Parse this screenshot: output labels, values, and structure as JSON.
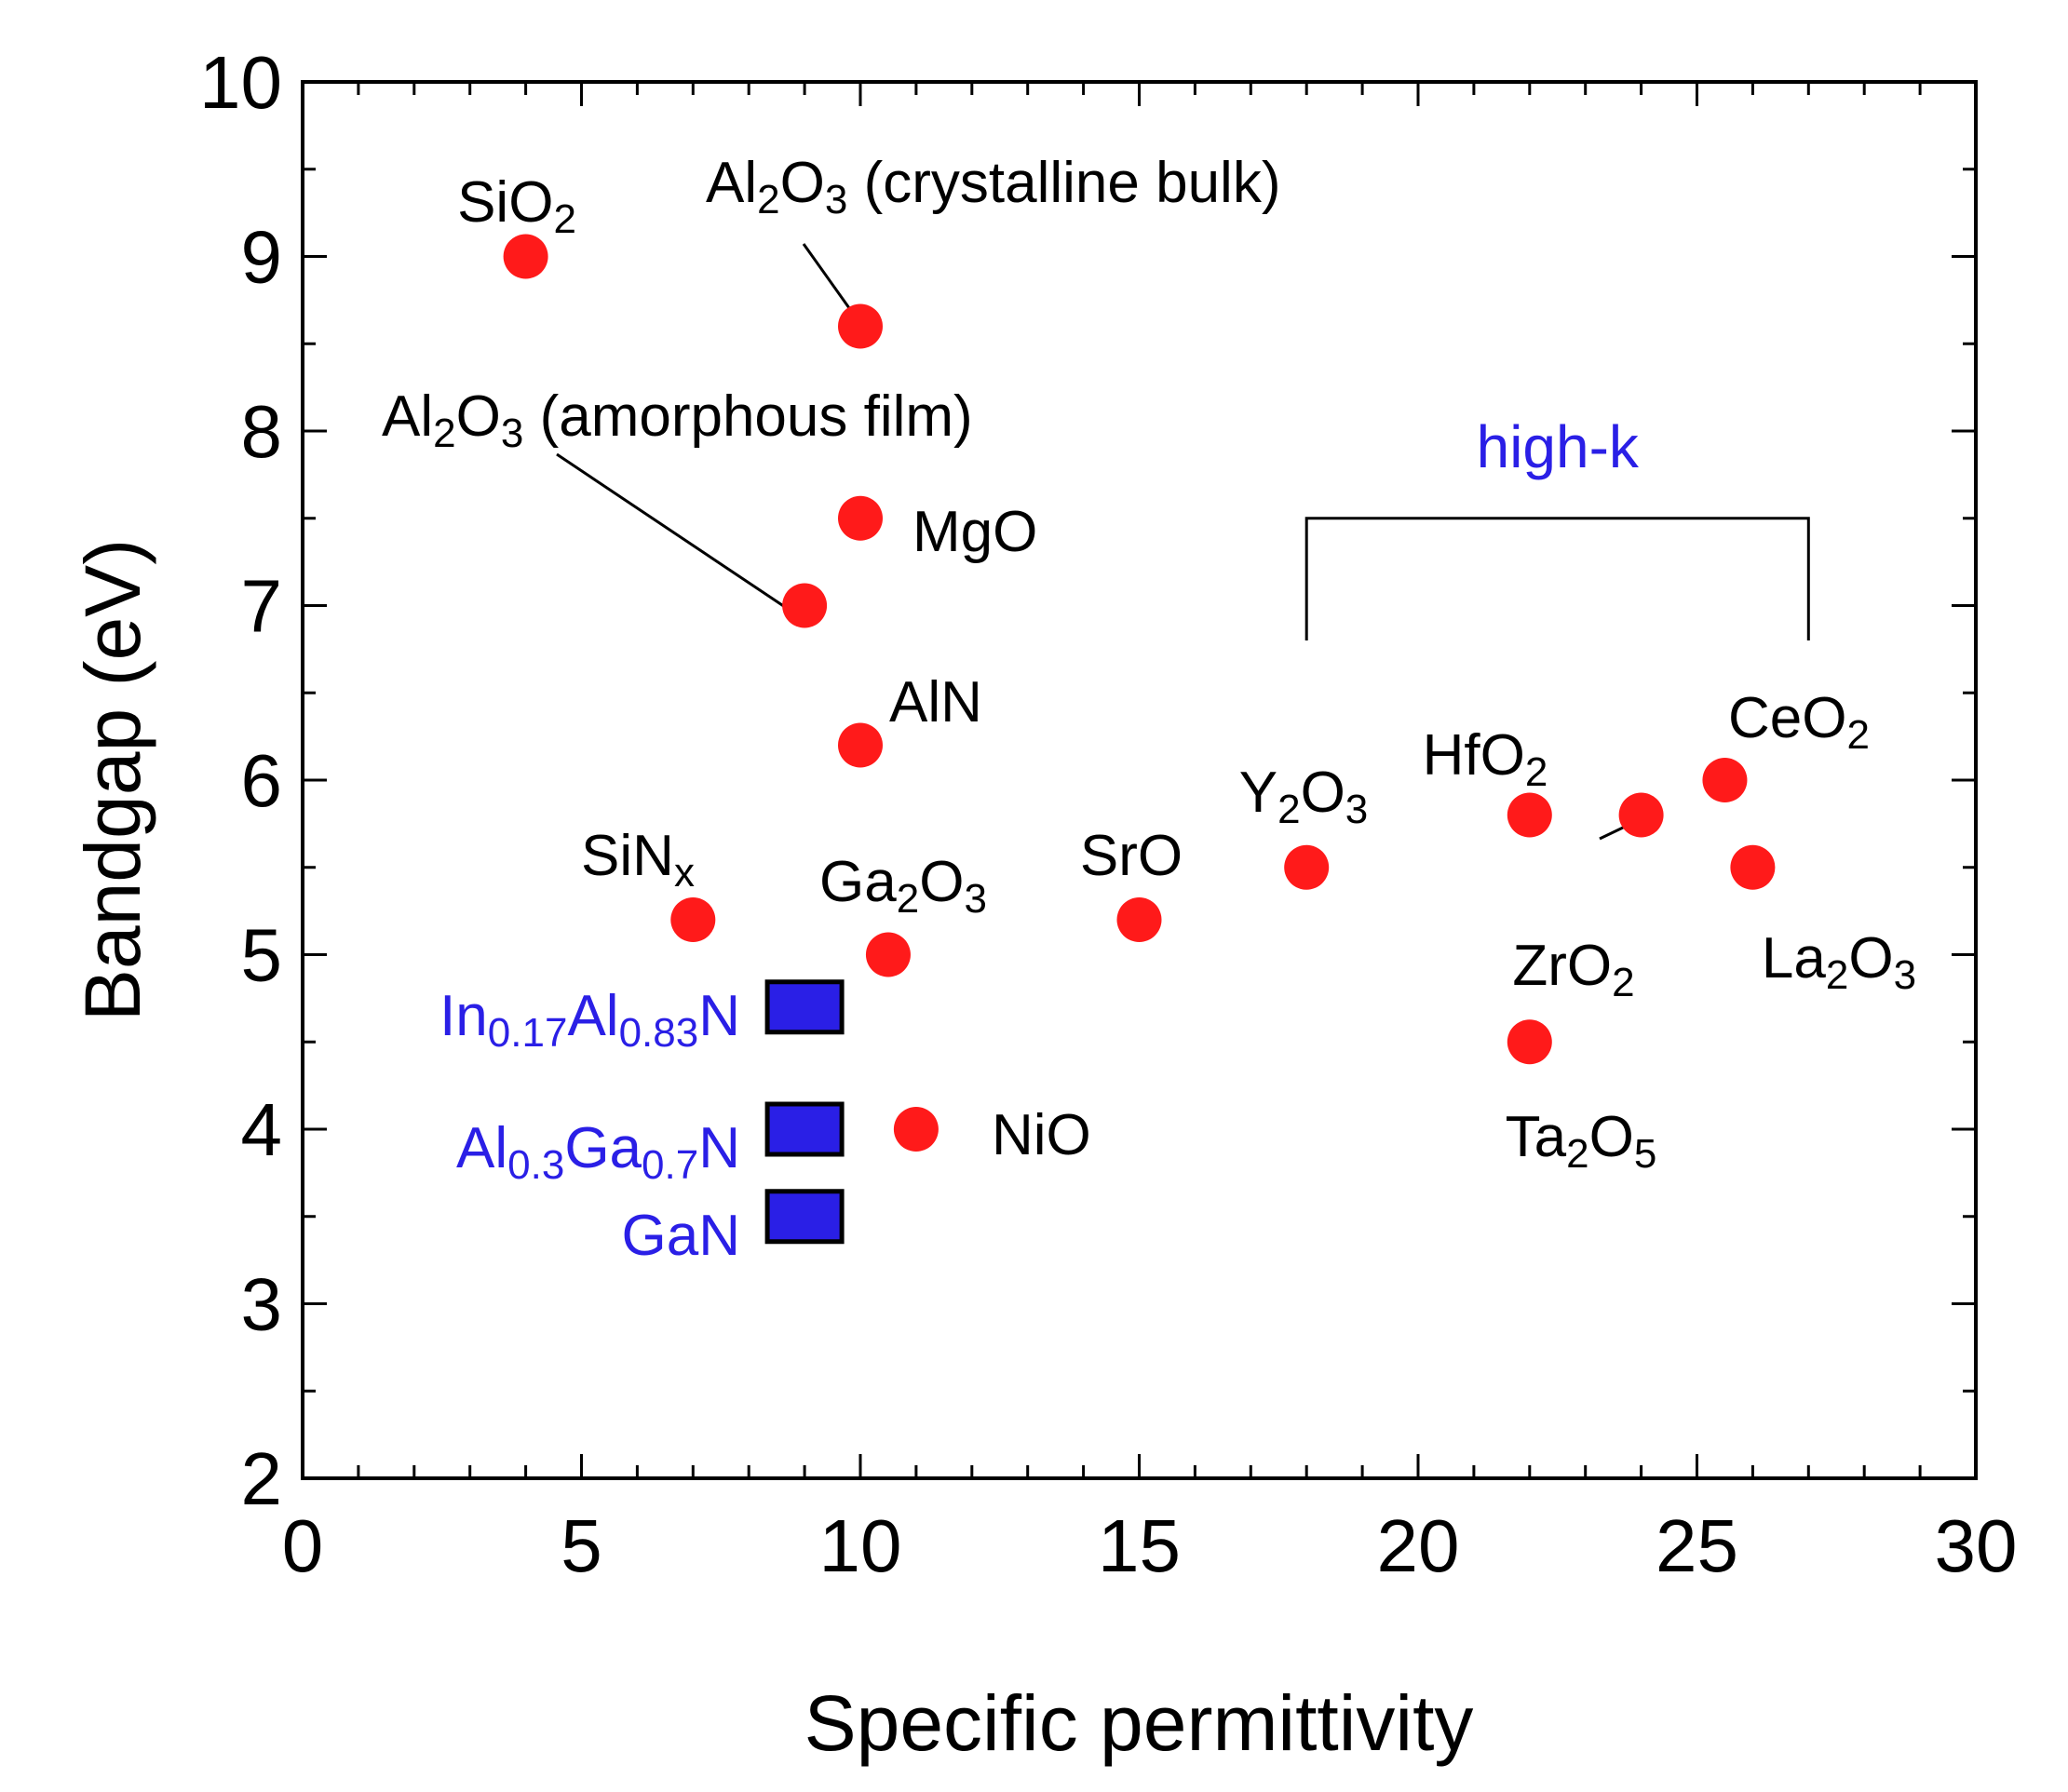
{
  "chart_data": {
    "type": "scatter",
    "xlabel": "Specific permittivity",
    "ylabel": "Bandgap (eV)",
    "xlim": [
      0,
      30
    ],
    "ylim": [
      2,
      10
    ],
    "x_ticks": [
      "0",
      "5",
      "10",
      "15",
      "20",
      "25",
      "30"
    ],
    "y_ticks": [
      "2",
      "3",
      "4",
      "5",
      "6",
      "7",
      "8",
      "9",
      "10"
    ],
    "grid": false,
    "colors": {
      "dielectric": "#ff1a1a",
      "semiconductor": "#2a1fe6",
      "semiconductor_label": "#2a1fe6"
    },
    "series": [
      {
        "name": "dielectrics",
        "marker": "circle",
        "points": [
          {
            "x": 4,
            "y": 9.0,
            "label": "SiO2",
            "base": "SiO",
            "sub": "2"
          },
          {
            "x": 10,
            "y": 8.6,
            "label": "Al2O3 (crystalline bulk)",
            "parts": [
              "Al",
              "2",
              "O",
              "3",
              " (crystalline bulk)"
            ]
          },
          {
            "x": 9,
            "y": 7.0,
            "label": "Al2O3 (amorphous film)",
            "parts": [
              "Al",
              "2",
              "O",
              "3",
              " (amorphous film)"
            ]
          },
          {
            "x": 10,
            "y": 7.5,
            "label": "MgO"
          },
          {
            "x": 10,
            "y": 6.2,
            "label": "AlN"
          },
          {
            "x": 7,
            "y": 5.2,
            "label": "SiNx",
            "parts": [
              "SiN",
              "x"
            ]
          },
          {
            "x": 10.5,
            "y": 5.0,
            "label": "Ga2O3",
            "parts": [
              "Ga",
              "2",
              "O",
              "3"
            ]
          },
          {
            "x": 11,
            "y": 4.0,
            "label": "NiO"
          },
          {
            "x": 15,
            "y": 5.2,
            "label": "SrO"
          },
          {
            "x": 18,
            "y": 5.5,
            "label": "Y2O3",
            "parts": [
              "Y",
              "2",
              "O",
              "3"
            ]
          },
          {
            "x": 22,
            "y": 5.8,
            "label": "HfO2",
            "parts": [
              "HfO",
              "2"
            ]
          },
          {
            "x": 24,
            "y": 5.8,
            "label": "ZrO2",
            "parts": [
              "ZrO",
              "2"
            ]
          },
          {
            "x": 25.5,
            "y": 6.0,
            "label": "CeO2",
            "parts": [
              "CeO",
              "2"
            ]
          },
          {
            "x": 26,
            "y": 5.5,
            "label": "La2O3",
            "parts": [
              "La",
              "2",
              "O",
              "3"
            ]
          },
          {
            "x": 22,
            "y": 4.5,
            "label": "Ta2O5",
            "parts": [
              "Ta",
              "2",
              "O",
              "5"
            ]
          }
        ]
      },
      {
        "name": "semiconductors",
        "marker": "square",
        "points": [
          {
            "x": 9,
            "y": 4.7,
            "label": "In0.17Al0.83N",
            "parts": [
              "In",
              "0.17",
              "Al",
              "0.83",
              "N"
            ]
          },
          {
            "x": 9,
            "y": 4.0,
            "label": "Al0.3Ga0.7N",
            "parts": [
              "Al",
              "0.3",
              "Ga",
              "0.7",
              "N"
            ]
          },
          {
            "x": 9,
            "y": 3.5,
            "label": "GaN"
          }
        ]
      }
    ],
    "annotations": [
      {
        "text": "high-k",
        "bracket_x": [
          18,
          27
        ],
        "bracket_y": 7.5,
        "bracket_bottom_y": 6.8
      }
    ]
  }
}
